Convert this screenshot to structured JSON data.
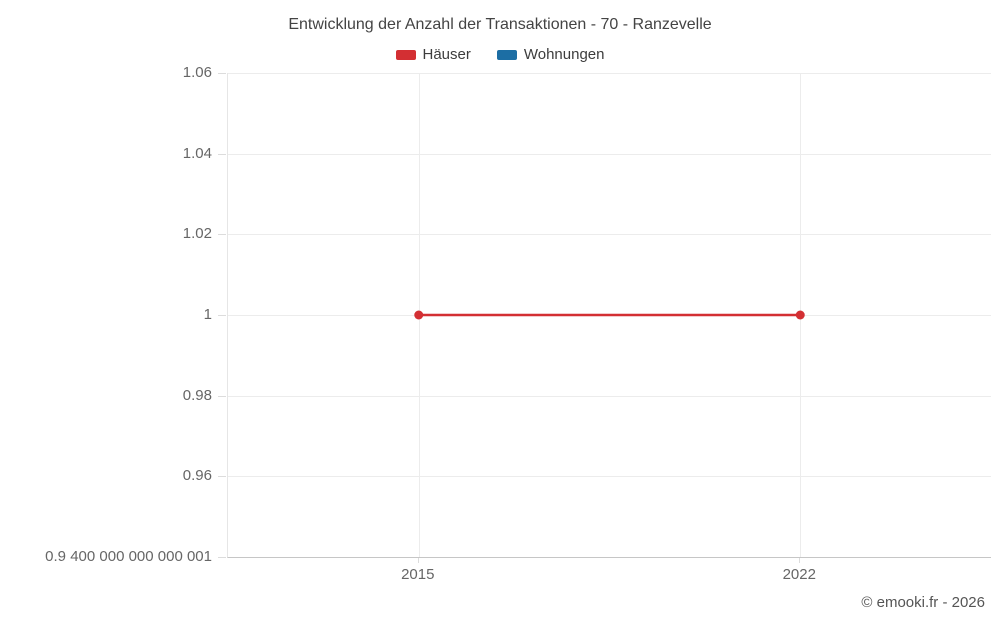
{
  "title": "Entwicklung der Anzahl der Transaktionen - 70 - Ranzevelle",
  "footer": "© emooki.fr - 2026",
  "legend": {
    "items": [
      {
        "label": "Häuser",
        "color": "#d32f33"
      },
      {
        "label": "Wohnungen",
        "color": "#1c6ea4"
      }
    ]
  },
  "colors": {
    "title_text": "#444444",
    "axis_text": "#666666",
    "gridline": "#ececec",
    "axis_line": "#c6c6c6",
    "background": "#ffffff",
    "haeuser_red": "#d32f33",
    "wohnungen_blue": "#1c6ea4"
  },
  "chart_data": {
    "type": "line",
    "title": "Entwicklung der Anzahl der Transaktionen - 70 - Ranzevelle",
    "categories": [
      "2015",
      "2022"
    ],
    "series": [
      {
        "name": "Häuser",
        "color": "#d32f33",
        "values": [
          1,
          1
        ]
      },
      {
        "name": "Wohnungen",
        "color": "#1c6ea4",
        "values": []
      }
    ],
    "y_ticks": [
      {
        "value": 1.06,
        "label": "1.06"
      },
      {
        "value": 1.04,
        "label": "1.04"
      },
      {
        "value": 1.02,
        "label": "1.02"
      },
      {
        "value": 1,
        "label": "1"
      },
      {
        "value": 0.98,
        "label": "0.98"
      },
      {
        "value": 0.96,
        "label": "0.96"
      },
      {
        "value": 0.94,
        "label": "0.9 400 000 000 000 001"
      }
    ],
    "ylim": [
      0.94,
      1.06
    ],
    "xlabel": "",
    "ylabel": "",
    "grid": true,
    "legend_position": "top"
  }
}
